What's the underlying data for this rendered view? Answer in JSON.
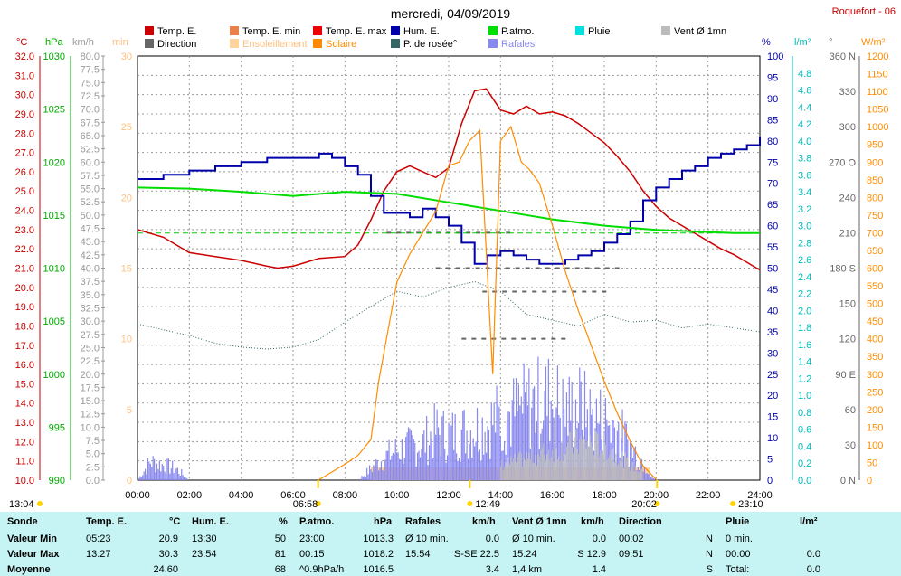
{
  "title": "mercredi, 04/09/2019",
  "station": "Roquefort - 06",
  "legend": [
    {
      "label": "Temp. E.",
      "color": "#cc0000"
    },
    {
      "label": "Temp. E. min",
      "color": "#e8824a"
    },
    {
      "label": "Temp. E. max",
      "color": "#ee0000"
    },
    {
      "label": "Hum. E.",
      "color": "#0000aa"
    },
    {
      "label": "P.atmo.",
      "color": "#00dd00"
    },
    {
      "label": "Pluie",
      "color": "#00e0e0"
    },
    {
      "label": "Vent Ø 1mn",
      "color": "#bbbbbb"
    },
    {
      "label": "Direction",
      "color": "#666666"
    },
    {
      "label": "Ensoleillement",
      "color": "#ffd39b"
    },
    {
      "label": "Solaire",
      "color": "#ff8c00"
    },
    {
      "label": "P. de rosée°",
      "color": "#336666"
    },
    {
      "label": "Rafales",
      "color": "#8888ee"
    }
  ],
  "axis_units": {
    "temp": "°C",
    "press": "hPa",
    "wind": "km/h",
    "sun": "min",
    "hum": "%",
    "rain": "l/m²",
    "dir": "°",
    "solar": "W/m²"
  },
  "markers": {
    "sunrise": "06:58",
    "solar_noon": "12:49",
    "sunset": "20:02",
    "moonset": "13:04",
    "moonrise": "23:10"
  },
  "chart_data": {
    "type": "line",
    "title": "mercredi, 04/09/2019",
    "x_ticks": [
      "00:00",
      "02:00",
      "04:00",
      "06:00",
      "08:00",
      "10:00",
      "12:00",
      "14:00",
      "16:00",
      "18:00",
      "20:00",
      "22:00",
      "24:00"
    ],
    "axes": {
      "temp_c": {
        "range": [
          10,
          32
        ],
        "ticks": [
          "10.0",
          "11.0",
          "12.0",
          "13.0",
          "14.0",
          "15.0",
          "16.0",
          "17.0",
          "18.0",
          "19.0",
          "20.0",
          "21.0",
          "22.0",
          "23.0",
          "24.0",
          "25.0",
          "26.0",
          "27.0",
          "28.0",
          "29.0",
          "30.0",
          "31.0",
          "32.0"
        ]
      },
      "press_hpa": {
        "range": [
          990,
          1030
        ],
        "ticks": [
          "990",
          "995",
          "1000",
          "1005",
          "1010",
          "1015",
          "1020",
          "1025",
          "1030"
        ]
      },
      "wind_kmh": {
        "range": [
          0,
          80
        ],
        "ticks": [
          "0.0",
          "2.5",
          "5.0",
          "7.5",
          "10.0",
          "12.5",
          "15.0",
          "17.5",
          "20.0",
          "22.5",
          "25.0",
          "27.5",
          "30.0",
          "32.5",
          "35.0",
          "37.5",
          "40.0",
          "42.5",
          "45.0",
          "47.5",
          "50.0",
          "52.5",
          "55.0",
          "57.5",
          "60.0",
          "62.5",
          "65.0",
          "67.5",
          "70.0",
          "72.5",
          "75.0",
          "77.5",
          "80.0"
        ]
      },
      "sun_min": {
        "range": [
          0,
          30
        ],
        "ticks": [
          "0",
          "5",
          "10",
          "15",
          "20",
          "25",
          "30"
        ]
      },
      "hum_pct": {
        "range": [
          0,
          100
        ],
        "ticks": [
          "0",
          "5",
          "10",
          "15",
          "20",
          "25",
          "30",
          "35",
          "40",
          "45",
          "50",
          "55",
          "60",
          "65",
          "70",
          "75",
          "80",
          "85",
          "90",
          "95",
          "100"
        ]
      },
      "rain_lm2": {
        "range": [
          0,
          5
        ],
        "ticks": [
          "0.0",
          "0.2",
          "0.4",
          "0.6",
          "0.8",
          "1.0",
          "1.2",
          "1.4",
          "1.6",
          "1.8",
          "2.0",
          "2.2",
          "2.4",
          "2.6",
          "2.8",
          "3.0",
          "3.2",
          "3.4",
          "3.6",
          "3.8",
          "4.0",
          "4.2",
          "4.4",
          "4.6",
          "4.8"
        ]
      },
      "dir_deg": {
        "range": [
          0,
          360
        ],
        "ticks": [
          "0 N",
          "30",
          "60",
          "90 E",
          "120",
          "150",
          "180 S",
          "210",
          "240",
          "270 O",
          "300",
          "330",
          "360 N"
        ]
      },
      "solar_wm2": {
        "range": [
          0,
          1200
        ],
        "ticks": [
          "0",
          "50",
          "100",
          "150",
          "200",
          "250",
          "300",
          "350",
          "400",
          "450",
          "500",
          "550",
          "600",
          "650",
          "700",
          "750",
          "800",
          "850",
          "900",
          "950",
          "1000",
          "1050",
          "1100",
          "1150",
          "1200"
        ]
      }
    },
    "series": [
      {
        "name": "Temp. E.",
        "axis": "temp_c",
        "x": [
          0,
          1,
          2,
          3,
          4,
          5,
          5.4,
          6,
          7,
          8,
          8.5,
          9,
          9.5,
          10,
          10.5,
          11,
          11.5,
          12,
          12.5,
          13,
          13.45,
          14,
          14.5,
          15,
          15.5,
          16,
          16.5,
          17,
          17.5,
          18,
          18.5,
          19,
          19.5,
          20,
          20.5,
          21,
          21.5,
          22,
          22.5,
          23,
          23.5,
          24
        ],
        "y": [
          23.0,
          22.6,
          21.8,
          21.6,
          21.4,
          21.1,
          21.0,
          21.1,
          21.5,
          21.6,
          22.2,
          23.5,
          25.0,
          26.0,
          26.3,
          26.0,
          25.7,
          26.2,
          28.5,
          30.2,
          30.3,
          29.2,
          29.0,
          29.4,
          29.0,
          29.1,
          28.9,
          28.5,
          28.0,
          27.5,
          26.8,
          26.0,
          25.0,
          24.2,
          23.6,
          23.2,
          22.8,
          22.4,
          22.0,
          21.7,
          21.3,
          20.9
        ]
      },
      {
        "name": "Hum. E.",
        "axis": "hum_pct",
        "x": [
          0,
          0.5,
          1,
          2,
          3,
          4,
          5,
          6,
          7,
          7.5,
          8,
          8.5,
          9,
          9.5,
          10,
          10.5,
          11,
          11.5,
          12,
          12.5,
          13,
          13.5,
          14,
          14.5,
          15,
          15.5,
          16,
          16.5,
          17,
          17.5,
          18,
          18.5,
          19,
          19.5,
          20,
          20.5,
          21,
          21.5,
          22,
          22.5,
          23,
          23.5,
          24
        ],
        "y": [
          71,
          71,
          72,
          73,
          74,
          75,
          76,
          76,
          77,
          76,
          74,
          72,
          67,
          63,
          63,
          62,
          64,
          62,
          60,
          56,
          51,
          53,
          54,
          53,
          52,
          51,
          51,
          52,
          53,
          54,
          56,
          58,
          61,
          66,
          69,
          71,
          73,
          74,
          76,
          77,
          78,
          79,
          81
        ]
      },
      {
        "name": "P.atmo.",
        "axis": "press_hpa",
        "x": [
          0,
          2,
          4,
          6,
          8,
          10,
          12,
          13,
          14,
          16,
          18,
          20,
          22,
          23,
          24
        ],
        "y": [
          1017.6,
          1017.5,
          1017.2,
          1016.8,
          1017.2,
          1017.0,
          1016.2,
          1015.8,
          1015.4,
          1014.6,
          1014.0,
          1013.6,
          1013.4,
          1013.3,
          1013.3
        ]
      },
      {
        "name": "P. de rosée°",
        "axis": "temp_c",
        "x": [
          0,
          1,
          2,
          3,
          4,
          5,
          6,
          7,
          8,
          9,
          10,
          11,
          12,
          13,
          14,
          15,
          16,
          17,
          18,
          19,
          20,
          21,
          22,
          23,
          24
        ],
        "y": [
          18.1,
          17.8,
          17.5,
          17.1,
          16.9,
          16.8,
          16.9,
          17.3,
          18.2,
          19.0,
          19.8,
          19.5,
          20.0,
          20.3,
          19.8,
          18.6,
          18.3,
          18.0,
          18.6,
          18.2,
          18.3,
          17.9,
          18.1,
          17.9,
          17.7
        ]
      },
      {
        "name": "Solaire",
        "axis": "solar_wm2",
        "x": [
          6.97,
          8,
          8.5,
          9,
          9.3,
          9.6,
          10,
          10.5,
          11,
          11.5,
          12,
          12.4,
          12.8,
          13.2,
          13.7,
          14,
          14.4,
          14.8,
          15.1,
          15.5,
          16,
          16.5,
          17,
          17.5,
          18,
          18.5,
          19,
          19.5,
          20.03
        ],
        "y": [
          0,
          45,
          70,
          115,
          280,
          400,
          560,
          640,
          700,
          760,
          890,
          900,
          960,
          990,
          300,
          960,
          1000,
          900,
          880,
          840,
          720,
          590,
          480,
          380,
          280,
          190,
          110,
          40,
          0
        ]
      },
      {
        "name": "Rafales",
        "axis": "wind_kmh",
        "x": [
          0,
          0.5,
          1,
          1.5,
          2,
          8.5,
          9,
          9.5,
          10,
          10.5,
          11,
          11.5,
          12,
          12.5,
          13,
          13.5,
          14,
          14.5,
          15,
          15.5,
          16,
          16.5,
          17,
          17.5,
          18,
          18.5,
          19,
          19.5,
          20
        ],
        "y": [
          0,
          5,
          4,
          3,
          0,
          0,
          3,
          6,
          8,
          9,
          10,
          13,
          12,
          13,
          14,
          15,
          17,
          18,
          20,
          21,
          22,
          18,
          20,
          17,
          16,
          14,
          9,
          5,
          0
        ]
      },
      {
        "name": "Vent Ø 1mn",
        "axis": "wind_kmh",
        "x": [
          14,
          14.5,
          15,
          15.5,
          16,
          16.5,
          17,
          17.5,
          18,
          18.5,
          19,
          19.5
        ],
        "y": [
          4,
          5,
          6,
          7,
          8,
          9,
          10,
          10,
          9,
          7,
          4,
          2
        ]
      }
    ],
    "ensoleillement_span": [
      "09:00",
      "19:45"
    ],
    "direction_dashes_deg": [
      210,
      180,
      160,
      120
    ]
  },
  "stats": {
    "headers": [
      "Sonde",
      "Temp. E.",
      "°C",
      "Hum. E.",
      "%",
      "P.atmo.",
      "hPa",
      "Rafales",
      "km/h",
      "Vent Ø 1mn",
      "km/h",
      "Direction",
      "Pluie",
      "l/m²"
    ],
    "rows": [
      {
        "label": "Valeur Min",
        "cells": [
          "05:23",
          "20.9",
          "13:30",
          "50",
          "23:00",
          "1013.3",
          "Ø 10 min.",
          "0.0",
          "Ø 10 min.",
          "0.0",
          "00:02",
          "N",
          "0 min.",
          ""
        ]
      },
      {
        "label": "Valeur Max",
        "cells": [
          "13:27",
          "30.3",
          "23:54",
          "81",
          "00:15",
          "1018.2",
          "15:54",
          "S-SE 22.5",
          "15:24",
          "S 12.9",
          "09:51",
          "N",
          "00:00",
          "0.0"
        ]
      },
      {
        "label": "Moyenne",
        "cells": [
          "",
          "24.60",
          "",
          "68",
          "^0.9hPa/h",
          "1016.5",
          "",
          "3.4",
          "1,4 km",
          "1.4",
          "",
          "S",
          "Total:",
          "0.0"
        ]
      }
    ]
  }
}
